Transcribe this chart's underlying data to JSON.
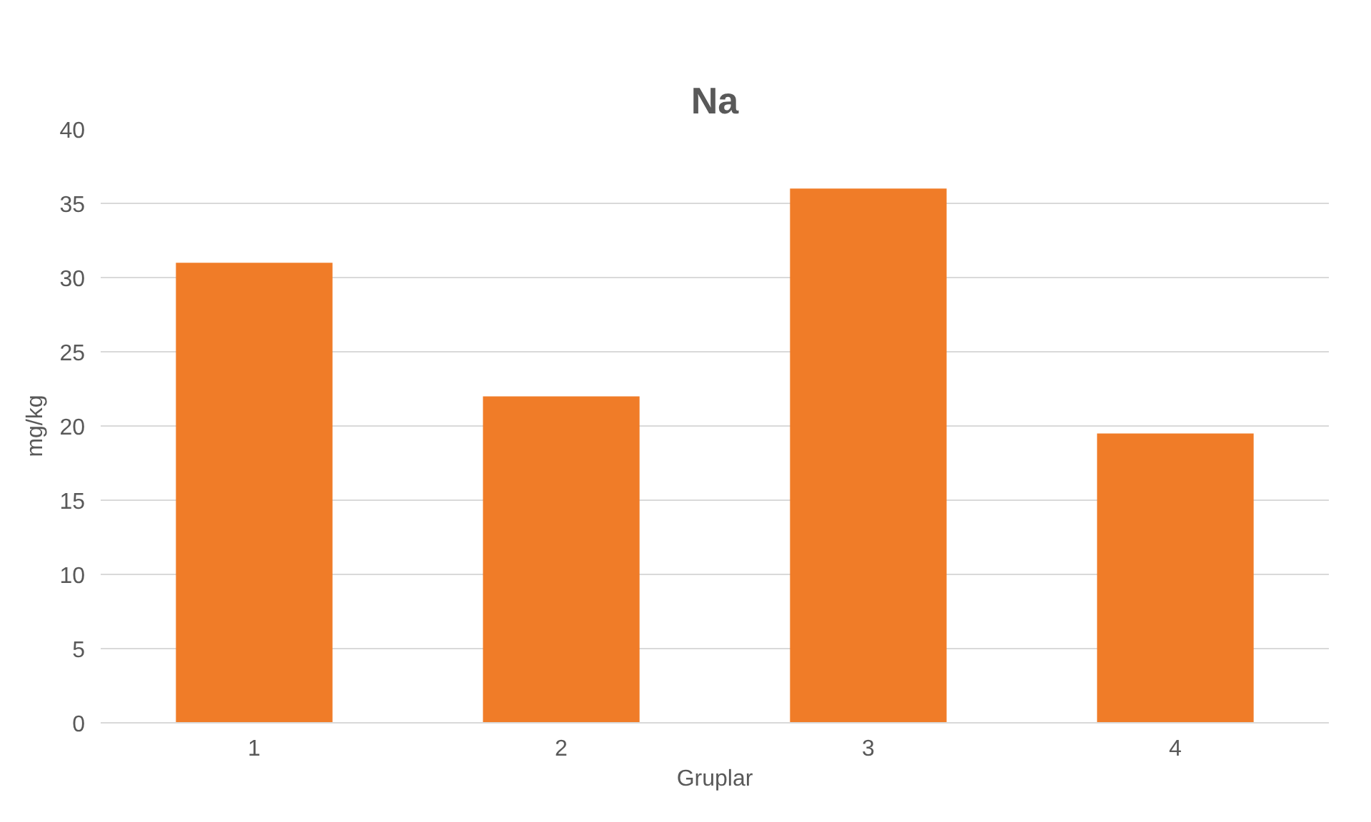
{
  "chart_data": {
    "type": "bar",
    "title": "Na",
    "xlabel": "Gruplar",
    "ylabel": "mg/kg",
    "categories": [
      "1",
      "2",
      "3",
      "4"
    ],
    "values": [
      31,
      22,
      36,
      19.5
    ],
    "color": "#f07c28",
    "ylim": [
      0,
      40
    ],
    "yticks": [
      0,
      5,
      10,
      15,
      20,
      25,
      30,
      35,
      40
    ],
    "grid": "y"
  }
}
